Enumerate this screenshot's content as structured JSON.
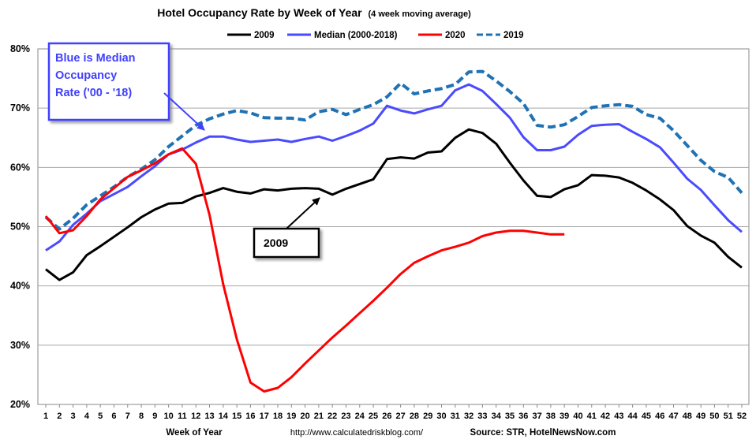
{
  "chart_data": {
    "type": "line",
    "title": "Hotel Occupancy Rate by  Week of Year",
    "subtitle": "(4 week moving average)",
    "xlabel": "Week of Year",
    "ylabel": "",
    "ylim": [
      20,
      80
    ],
    "yticks": [
      "20%",
      "30%",
      "40%",
      "50%",
      "60%",
      "70%",
      "80%"
    ],
    "ytick_values": [
      20,
      30,
      40,
      50,
      60,
      70,
      80
    ],
    "x": [
      1,
      2,
      3,
      4,
      5,
      6,
      7,
      8,
      9,
      10,
      11,
      12,
      13,
      14,
      15,
      16,
      17,
      18,
      19,
      20,
      21,
      22,
      23,
      24,
      25,
      26,
      27,
      28,
      29,
      30,
      31,
      32,
      33,
      34,
      35,
      36,
      37,
      38,
      39,
      40,
      41,
      42,
      43,
      44,
      45,
      46,
      47,
      48,
      49,
      50,
      51,
      52
    ],
    "grid": true,
    "legend_position": "top",
    "series": [
      {
        "name": "2009",
        "color": "#000000",
        "dash": "solid",
        "values": [
          42.8,
          41.0,
          42.3,
          45.2,
          46.7,
          48.3,
          49.9,
          51.6,
          52.9,
          53.9,
          54.0,
          55.1,
          55.7,
          56.5,
          55.9,
          55.6,
          56.3,
          56.1,
          56.4,
          56.5,
          56.4,
          55.4,
          56.4,
          57.2,
          58.0,
          61.4,
          61.7,
          61.5,
          62.5,
          62.7,
          65.0,
          66.4,
          65.8,
          64.0,
          60.8,
          57.8,
          55.2,
          55.0,
          56.3,
          57.0,
          58.7,
          58.6,
          58.3,
          57.4,
          56.1,
          54.6,
          52.8,
          50.1,
          48.5,
          47.3,
          44.9,
          43.1
        ]
      },
      {
        "name": "Median (2000-2018)",
        "color": "#4a4aff",
        "dash": "solid",
        "values": [
          46.0,
          47.5,
          50.3,
          52.2,
          54.3,
          55.5,
          56.7,
          58.5,
          60.2,
          62.2,
          63.0,
          64.2,
          65.2,
          65.2,
          64.7,
          64.3,
          64.5,
          64.7,
          64.3,
          64.8,
          65.2,
          64.5,
          65.3,
          66.2,
          67.4,
          70.4,
          69.6,
          69.1,
          69.8,
          70.4,
          73.0,
          74.0,
          72.9,
          70.7,
          68.4,
          65.1,
          62.9,
          62.9,
          63.5,
          65.5,
          67.0,
          67.2,
          67.3,
          66.0,
          64.8,
          63.4,
          60.8,
          58.1,
          56.2,
          53.6,
          51.1,
          49.1
        ]
      },
      {
        "name": "2020",
        "color": "#ff0000",
        "dash": "solid",
        "values": [
          51.8,
          48.9,
          49.4,
          51.8,
          54.6,
          56.5,
          58.4,
          59.5,
          60.7,
          62.2,
          63.2,
          60.6,
          52.0,
          40.3,
          31.0,
          23.7,
          22.2,
          22.8,
          24.6,
          26.9,
          29.1,
          31.3,
          33.3,
          35.4,
          37.5,
          39.7,
          42.0,
          43.9,
          45.0,
          46.0,
          46.6,
          47.3,
          48.4,
          49.0,
          49.3,
          49.3,
          49.0,
          48.7,
          48.7,
          null,
          null,
          null,
          null,
          null,
          null,
          null,
          null,
          null,
          null,
          null,
          null,
          null
        ]
      },
      {
        "name": "2019",
        "color": "#1f72b4",
        "dash": "dashed",
        "values": [
          51.6,
          49.6,
          51.4,
          53.7,
          55.2,
          56.7,
          58.4,
          59.7,
          61.3,
          63.5,
          65.3,
          67.1,
          68.2,
          69.0,
          69.6,
          69.2,
          68.4,
          68.3,
          68.3,
          68.0,
          69.4,
          69.8,
          68.9,
          69.8,
          70.6,
          71.9,
          74.2,
          72.4,
          72.9,
          73.3,
          74.0,
          76.1,
          76.2,
          74.6,
          72.8,
          70.8,
          67.1,
          66.8,
          67.2,
          68.6,
          70.1,
          70.4,
          70.6,
          70.3,
          68.9,
          68.3,
          66.2,
          63.7,
          61.2,
          59.3,
          58.3,
          55.7
        ]
      }
    ],
    "annotations": {
      "blue_box": [
        "Blue is Median",
        "Occupancy",
        "Rate ('00 - '18)"
      ],
      "black_box": "2009"
    },
    "footer": {
      "url": "http://www.calculatedriskblog.com/",
      "source": "Source: STR, HotelNewsNow.com"
    }
  }
}
